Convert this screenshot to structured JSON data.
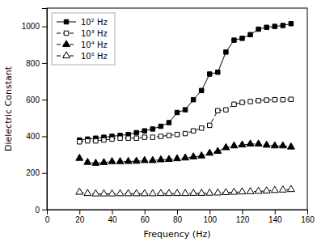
{
  "chart_data": {
    "type": "line",
    "xlabel": "Frequency (Hz)",
    "ylabel": "Dielectric Constant",
    "x": [
      20,
      25,
      30,
      35,
      40,
      45,
      50,
      55,
      60,
      65,
      70,
      75,
      80,
      85,
      90,
      95,
      100,
      105,
      110,
      115,
      120,
      125,
      130,
      135,
      140,
      145,
      150
    ],
    "xlim": [
      0,
      160
    ],
    "ylim": [
      0,
      1100
    ],
    "xticks": [
      0,
      20,
      40,
      60,
      80,
      100,
      120,
      140,
      160
    ],
    "yticks": [
      0,
      200,
      400,
      600,
      800,
      1000
    ],
    "legend": "upper left",
    "series": [
      {
        "name": "10² Hz",
        "color": "black",
        "marker": "square",
        "line_style": "solid",
        "values": [
          380,
          385,
          390,
          395,
          400,
          405,
          410,
          420,
          430,
          440,
          455,
          475,
          530,
          545,
          600,
          650,
          740,
          750,
          860,
          925,
          935,
          955,
          985,
          995,
          1000,
          1005,
          1015
        ]
      },
      {
        "name": "10³ Hz",
        "color": "black",
        "marker": "square-open",
        "line_style": "dashed",
        "values": [
          370,
          375,
          375,
          380,
          385,
          390,
          390,
          390,
          395,
          395,
          400,
          405,
          410,
          415,
          430,
          445,
          460,
          540,
          545,
          575,
          585,
          590,
          595,
          598,
          600,
          600,
          602
        ]
      },
      {
        "name": "10⁴ Hz",
        "color": "black",
        "marker": "triangle",
        "line_style": "dashed",
        "values": [
          280,
          258,
          253,
          257,
          262,
          262,
          263,
          264,
          268,
          268,
          272,
          274,
          278,
          282,
          288,
          293,
          308,
          318,
          338,
          348,
          353,
          358,
          358,
          352,
          348,
          348,
          342
        ]
      },
      {
        "name": "10⁵ Hz",
        "color": "black",
        "marker": "triangle-open",
        "line_style": "dashed",
        "values": [
          95,
          88,
          86,
          86,
          86,
          87,
          87,
          87,
          87,
          87,
          88,
          88,
          88,
          88,
          89,
          89,
          90,
          91,
          93,
          95,
          97,
          98,
          100,
          102,
          105,
          107,
          110
        ]
      }
    ]
  }
}
